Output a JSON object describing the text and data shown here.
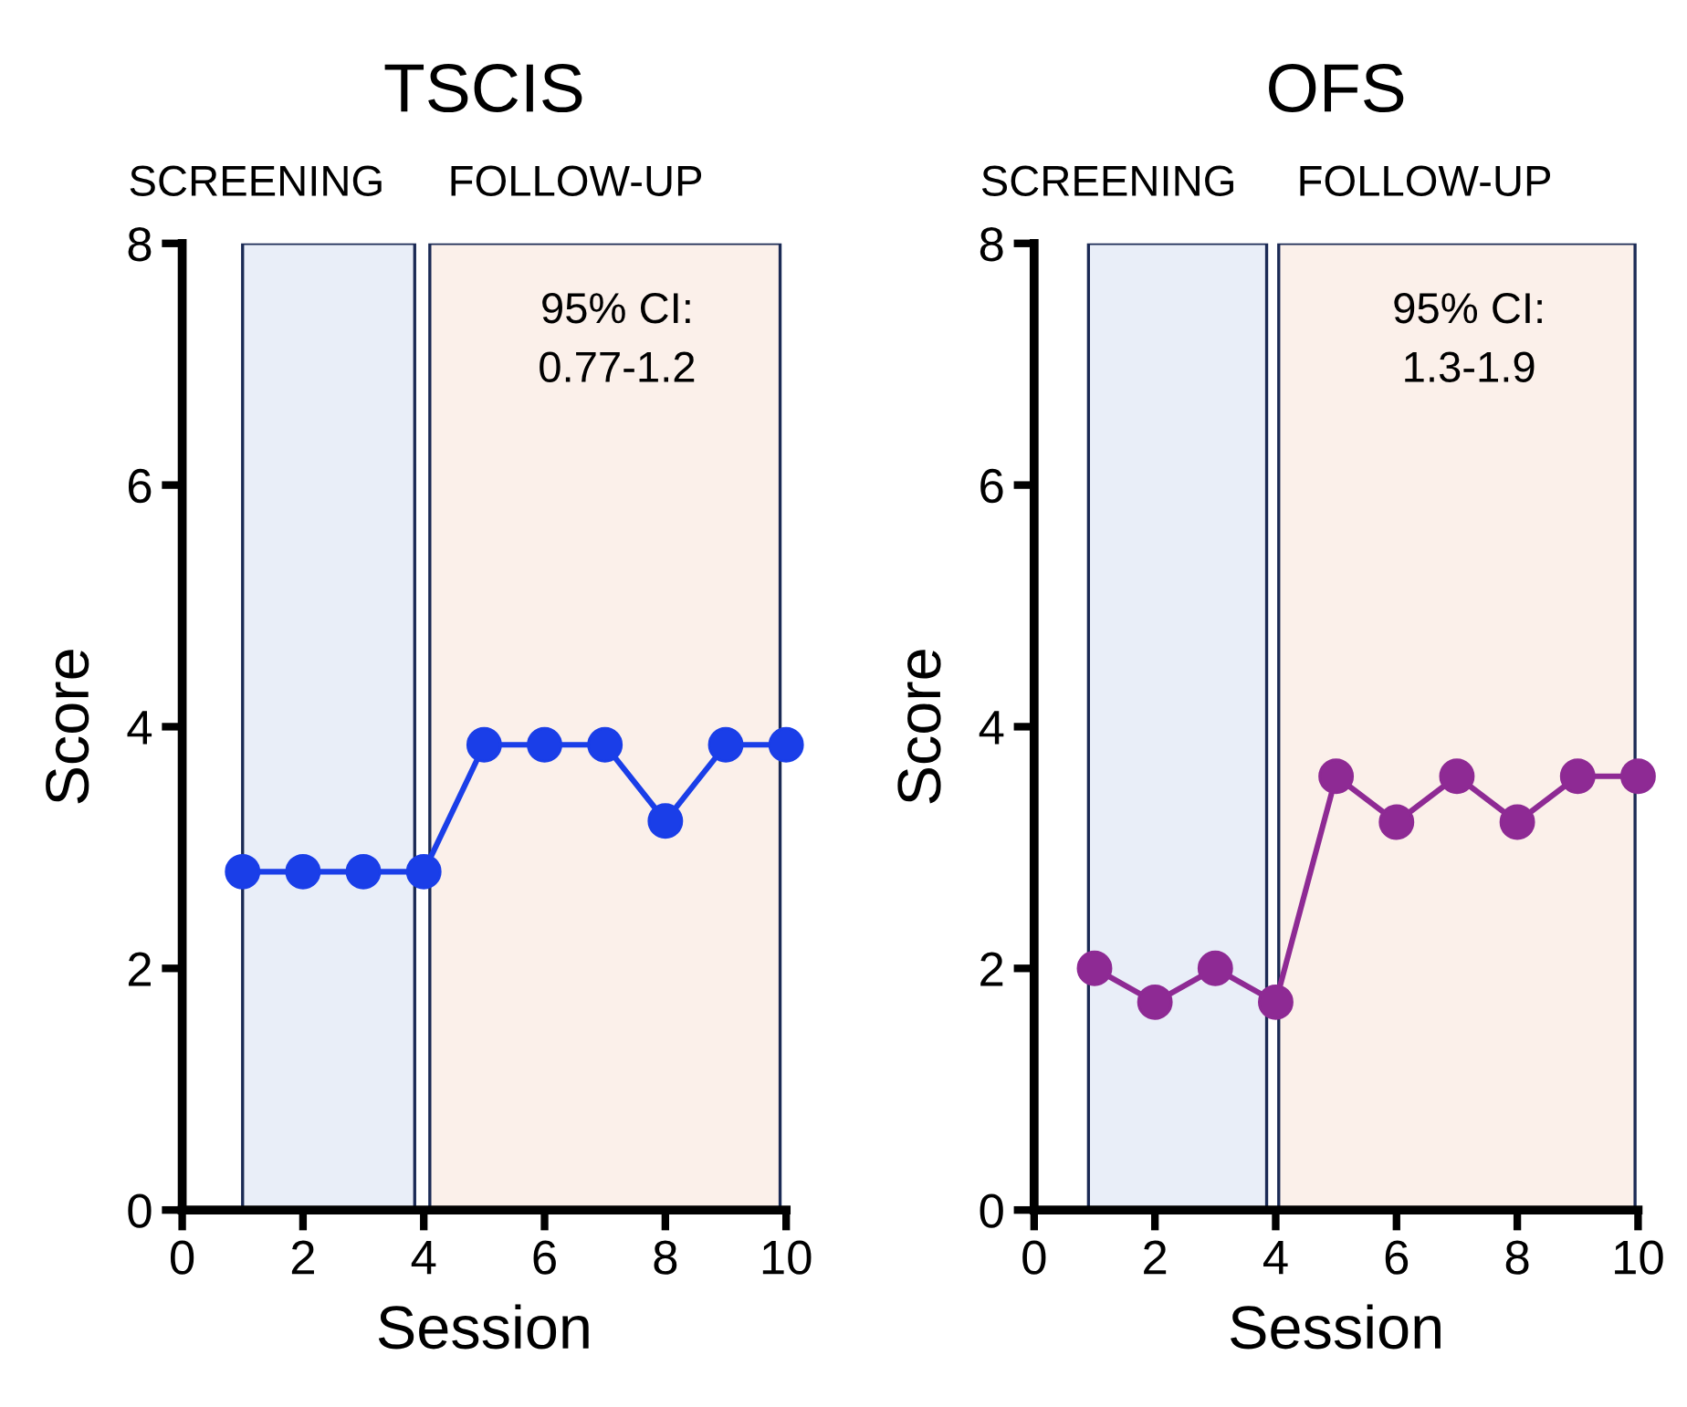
{
  "chart_data": [
    {
      "type": "line",
      "title": "TSCIS",
      "xlabel": "Session",
      "ylabel": "Score",
      "x": [
        1,
        2,
        3,
        4,
        5,
        6,
        7,
        8,
        9,
        10
      ],
      "series": [
        {
          "color": "#1a3ee8",
          "values": [
            2.8,
            2.8,
            2.8,
            2.8,
            3.85,
            3.85,
            3.85,
            3.22,
            3.85,
            3.85
          ]
        }
      ],
      "xlim": [
        0,
        10
      ],
      "ylim": [
        0,
        8
      ],
      "xticks": [
        0,
        2,
        4,
        6,
        8,
        10
      ],
      "yticks": [
        0,
        2,
        4,
        6,
        8
      ],
      "marker": "circle",
      "line_style": "solid",
      "grid": false,
      "legend": false,
      "bands": [
        {
          "axis": "x",
          "from": 1,
          "to": 3.85,
          "label": "SCREENING",
          "color": "#e9eef8"
        },
        {
          "axis": "x",
          "from": 4.1,
          "to": 9.9,
          "label": "FOLLOW-UP",
          "color": "#fbf0ea"
        }
      ],
      "annotations": [
        "95% CI:\n0.77-1.2"
      ]
    },
    {
      "type": "line",
      "title": "OFS",
      "xlabel": "Session",
      "ylabel": "Score",
      "x": [
        1,
        2,
        3,
        4,
        5,
        6,
        7,
        8,
        9,
        10
      ],
      "series": [
        {
          "color": "#8e2a94",
          "values": [
            2.0,
            1.72,
            2.0,
            1.72,
            3.59,
            3.21,
            3.59,
            3.21,
            3.59,
            3.59
          ]
        }
      ],
      "xlim": [
        0,
        10
      ],
      "ylim": [
        0,
        8
      ],
      "xticks": [
        0,
        2,
        4,
        6,
        8,
        10
      ],
      "yticks": [
        0,
        2,
        4,
        6,
        8
      ],
      "marker": "circle",
      "line_style": "solid",
      "grid": false,
      "legend": false,
      "bands": [
        {
          "axis": "x",
          "from": 0.9,
          "to": 3.85,
          "label": "SCREENING",
          "color": "#e9eef8"
        },
        {
          "axis": "x",
          "from": 4.05,
          "to": 9.95,
          "label": "FOLLOW-UP",
          "color": "#fbf0ea"
        }
      ],
      "annotations": [
        "95% CI:\n1.3-1.9"
      ]
    }
  ]
}
